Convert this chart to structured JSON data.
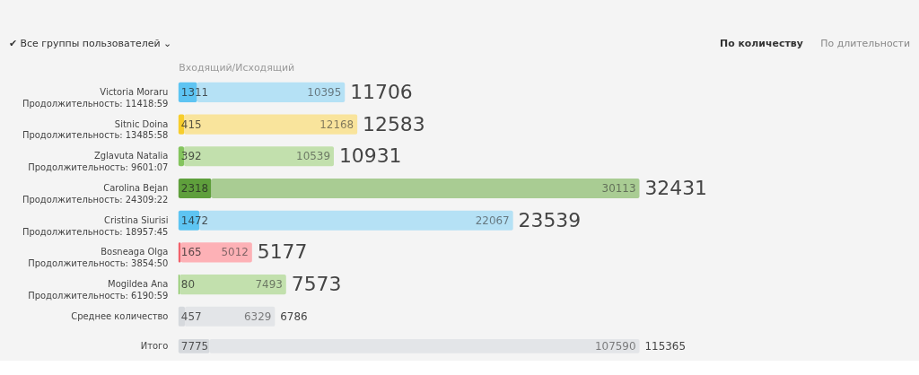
{
  "chart_data": [
    {
      "type": "bar",
      "orientation": "horizontal",
      "stacked": true,
      "data_labels": true,
      "xlabel": "Входящий/Исходящий",
      "annotations": [
        "✔ Все группы пользователей ⌄",
        "По количеству",
        "По длительности"
      ],
      "categories": [
        "Victoria Moraru\nПродолжительность: 11418:59",
        "Sitnic Doina\nПродолжительность: 13485:58",
        "Zglavuta Natalia\nПродолжительность: 9601:07",
        "Carolina Bejan\nПродолжительность: 24309:22",
        "Cristina Siurisi\nПродолжительность: 18957:45",
        "Bosneaga Olga\nПродолжительность: 3854:50",
        "Mogildea Ana\nПродолжительность: 6190:59",
        "Среднее количество"
      ],
      "series": [
        {
          "values": [
            1311,
            415,
            392,
            2318,
            1472,
            165,
            80,
            457
          ],
          "colors": [
            "#5ec4f2",
            "#f7cd2c",
            "#84c45e",
            "#5f9f3c",
            "#5ec4f2",
            "#f2616b",
            "#84c45e",
            "#d6d9dd"
          ]
        },
        {
          "values": [
            10395,
            12168,
            10539,
            30113,
            22067,
            5012,
            7493,
            6329
          ],
          "colors": [
            "#b5e1f5",
            "#f9e49c",
            "#c2e0ad",
            "#a9cc93",
            "#b5e1f5",
            "#fdb1b6",
            "#c2e0ad",
            "#e3e5e8"
          ]
        }
      ],
      "totals": [
        "11706",
        "12583",
        "10931",
        "32431",
        "23539",
        "5177",
        "7573",
        "6786"
      ]
    },
    {
      "type": "bar",
      "orientation": "horizontal",
      "stacked": true,
      "data_labels": true,
      "categories": [
        "Итого"
      ],
      "series": [
        {
          "values": [
            7775
          ],
          "colors": [
            "#d6d9dd"
          ]
        },
        {
          "values": [
            107590
          ],
          "colors": [
            "#e3e5e8"
          ]
        }
      ],
      "totals": [
        "115365"
      ]
    }
  ]
}
